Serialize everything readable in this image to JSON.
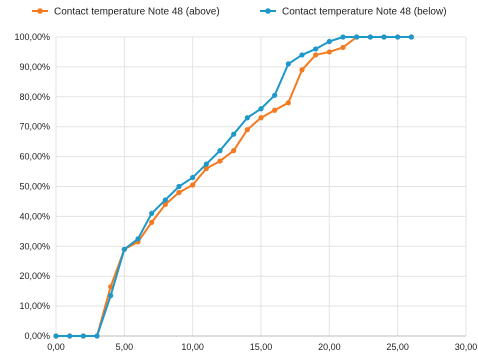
{
  "chart_data": {
    "type": "line",
    "title": "",
    "xlabel": "",
    "ylabel": "",
    "xlim": [
      0,
      30
    ],
    "ylim": [
      0,
      100
    ],
    "x_ticks": [
      "0,00",
      "5,00",
      "10,00",
      "15,00",
      "20,00",
      "25,00",
      "30,00"
    ],
    "y_ticks": [
      "0,00%",
      "10,00%",
      "20,00%",
      "30,00%",
      "40,00%",
      "50,00%",
      "60,00%",
      "70,00%",
      "80,00%",
      "90,00%",
      "100,00%"
    ],
    "grid": true,
    "legend_position": "top",
    "series": [
      {
        "name": "Contact temperature Note 48 (above)",
        "color": "#f47a20",
        "x": [
          0,
          1,
          2,
          3,
          4,
          5,
          6,
          7,
          8,
          9,
          10,
          11,
          12,
          13,
          14,
          15,
          16,
          17,
          18,
          19,
          20,
          21,
          22,
          23,
          24,
          25,
          26
        ],
        "y": [
          0,
          0,
          0,
          0,
          16.5,
          29,
          31.5,
          38,
          44,
          48,
          50.5,
          56,
          58.5,
          62,
          69,
          73,
          75.5,
          78,
          89,
          94,
          95,
          96.5,
          100,
          100,
          100,
          100,
          100
        ]
      },
      {
        "name": "Contact temperature Note 48 (below)",
        "color": "#1e98c9",
        "x": [
          0,
          1,
          2,
          3,
          4,
          5,
          6,
          7,
          8,
          9,
          10,
          11,
          12,
          13,
          14,
          15,
          16,
          17,
          18,
          19,
          20,
          21,
          22,
          23,
          24,
          25,
          26
        ],
        "y": [
          0,
          0,
          0,
          0,
          13.5,
          29,
          32.5,
          41,
          45.5,
          50,
          53,
          57.5,
          62,
          67.5,
          73,
          76,
          80.5,
          91,
          94,
          96,
          98.5,
          100,
          100,
          100,
          100,
          100,
          100
        ]
      }
    ]
  }
}
